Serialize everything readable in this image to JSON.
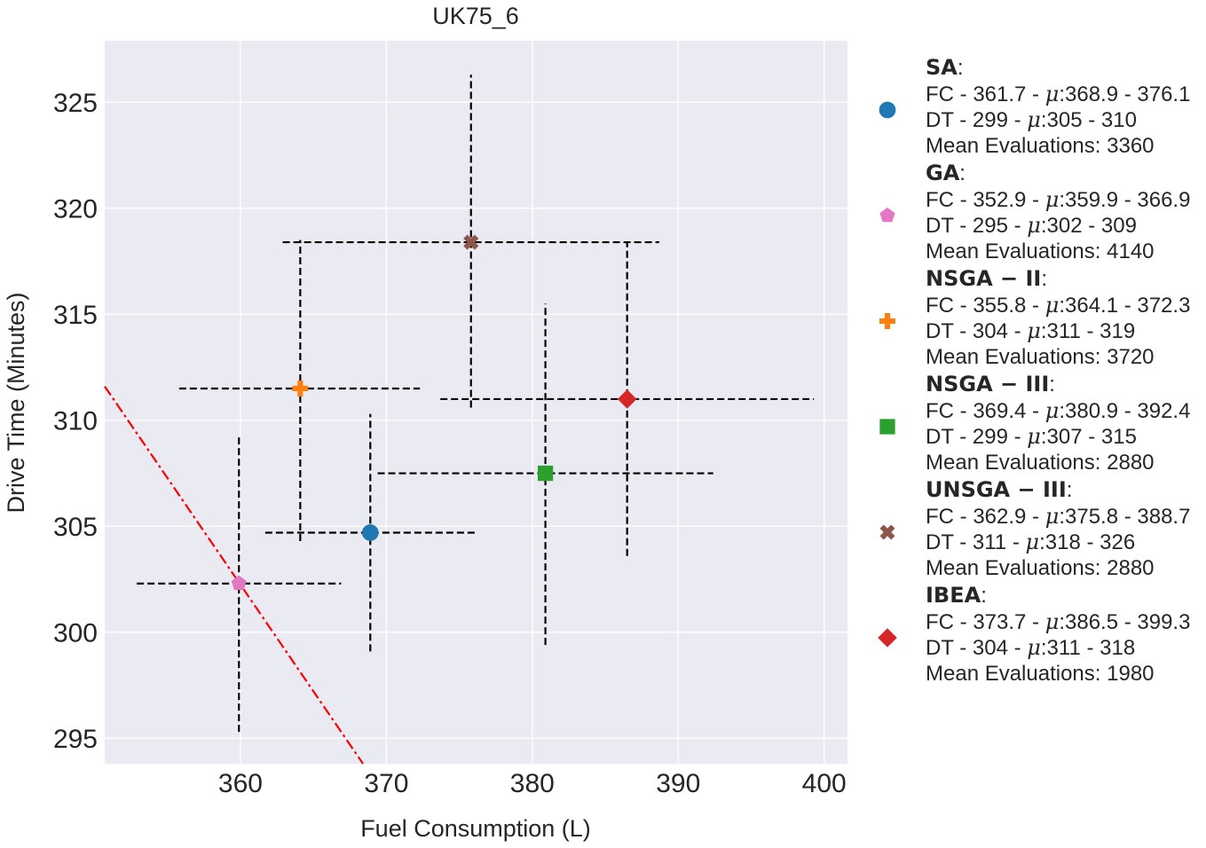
{
  "chart_data": {
    "type": "scatter",
    "title": "UK75_6",
    "xlabel": "Fuel Consumption (L)",
    "ylabel": "Drive Time (Minutes)",
    "xlim": [
      350.7,
      401.6
    ],
    "ylim": [
      293.8,
      327.9
    ],
    "xticks": [
      360,
      370,
      380,
      390,
      400
    ],
    "yticks": [
      295,
      300,
      305,
      310,
      315,
      320,
      325
    ],
    "grid": true,
    "legend_position": "right, outside plot",
    "reference_line": {
      "style": "dash-dot",
      "color": "#ff0000",
      "points": [
        [
          350.7,
          311.6
        ],
        [
          368.4,
          293.8
        ]
      ]
    },
    "series": [
      {
        "name": "SA",
        "marker": "circle",
        "color": "#1f77b4",
        "x": 368.9,
        "y": 304.7,
        "fc_range": [
          361.7,
          376.1
        ],
        "dt_range": [
          299.1,
          310.3
        ],
        "fc_text": "FC - 361.7 - ",
        "fc_mu": "368.9 - 376.1",
        "dt_text": "DT - 299 - ",
        "dt_mu": "305 - 310",
        "evals": "Mean Evaluations: 3360"
      },
      {
        "name": "GA",
        "marker": "pentagon",
        "color": "#e377c2",
        "x": 359.9,
        "y": 302.3,
        "fc_range": [
          352.9,
          366.9
        ],
        "dt_range": [
          295.3,
          309.2
        ],
        "fc_text": "FC - 352.9 - ",
        "fc_mu": "359.9 - 366.9",
        "dt_text": "DT - 295 - ",
        "dt_mu": "302 - 309",
        "evals": "Mean Evaluations: 4140"
      },
      {
        "name": "NSGA − II",
        "marker": "plus",
        "color": "#ff7f0e",
        "x": 364.1,
        "y": 311.5,
        "fc_range": [
          355.8,
          372.3
        ],
        "dt_range": [
          304.3,
          318.5
        ],
        "fc_text": "FC - 355.8 - ",
        "fc_mu": "364.1 - 372.3",
        "dt_text": "DT - 304 - ",
        "dt_mu": "311 - 319",
        "evals": "Mean Evaluations: 3720"
      },
      {
        "name": "NSGA − III",
        "marker": "square",
        "color": "#2ca02c",
        "x": 380.9,
        "y": 307.5,
        "fc_range": [
          369.4,
          392.4
        ],
        "dt_range": [
          299.4,
          315.5
        ],
        "fc_text": "FC - 369.4 - ",
        "fc_mu": "380.9 - 392.4",
        "dt_text": "DT - 299 - ",
        "dt_mu": "307 - 315",
        "evals": "Mean Evaluations: 2880"
      },
      {
        "name": "UNSGA − III",
        "marker": "x",
        "color": "#8c564b",
        "x": 375.8,
        "y": 318.4,
        "fc_range": [
          362.9,
          388.7
        ],
        "dt_range": [
          310.6,
          326.3
        ],
        "fc_text": "FC - 362.9 - ",
        "fc_mu": "375.8 - 388.7",
        "dt_text": "DT - 311 - ",
        "dt_mu": "318 - 326",
        "evals": "Mean Evaluations: 2880"
      },
      {
        "name": "IBEA",
        "marker": "diamond",
        "color": "#d62728",
        "x": 386.5,
        "y": 311.0,
        "fc_range": [
          373.7,
          399.3
        ],
        "dt_range": [
          303.6,
          318.4
        ],
        "fc_text": "FC - 373.7 - ",
        "fc_mu": "386.5 - 399.3",
        "dt_text": "DT - 304 - ",
        "dt_mu": "311 - 318",
        "evals": "Mean Evaluations: 1980"
      }
    ]
  },
  "colors": {
    "plot_background": "#eaeaf2",
    "grid": "#ffffff",
    "error_bar": "#000000",
    "reference_line": "#ff0000"
  }
}
